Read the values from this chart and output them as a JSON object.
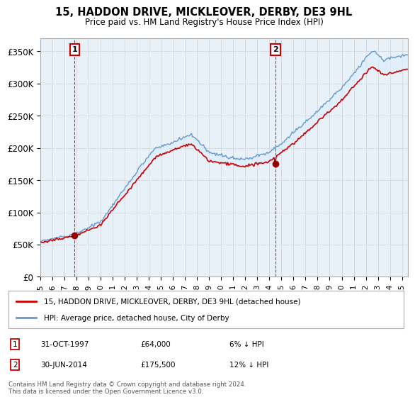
{
  "title": "15, HADDON DRIVE, MICKLEOVER, DERBY, DE3 9HL",
  "subtitle": "Price paid vs. HM Land Registry's House Price Index (HPI)",
  "legend_label_red": "15, HADDON DRIVE, MICKLEOVER, DERBY, DE3 9HL (detached house)",
  "legend_label_blue": "HPI: Average price, detached house, City of Derby",
  "annotation1_label": "1",
  "annotation1_date": "31-OCT-1997",
  "annotation1_price": "£64,000",
  "annotation1_hpi": "6% ↓ HPI",
  "annotation2_label": "2",
  "annotation2_date": "30-JUN-2014",
  "annotation2_price": "£175,500",
  "annotation2_hpi": "12% ↓ HPI",
  "footer": "Contains HM Land Registry data © Crown copyright and database right 2024.\nThis data is licensed under the Open Government Licence v3.0.",
  "xmin": 1995.0,
  "xmax": 2025.5,
  "ymin": 0,
  "ymax": 370000,
  "yticks": [
    0,
    50000,
    100000,
    150000,
    200000,
    250000,
    300000,
    350000
  ],
  "ytick_labels": [
    "£0",
    "£50K",
    "£100K",
    "£150K",
    "£200K",
    "£250K",
    "£300K",
    "£350K"
  ],
  "sale1_x": 1997.83,
  "sale1_y": 64000,
  "sale2_x": 2014.5,
  "sale2_y": 175500,
  "red_color": "#cc0000",
  "blue_color": "#6699cc",
  "fill_color": "#ddeeff",
  "marker_color": "#990000",
  "vline_color": "#cc0000",
  "background_color": "#ffffff",
  "grid_color": "#cccccc",
  "chart_bg": "#e8f0f8"
}
